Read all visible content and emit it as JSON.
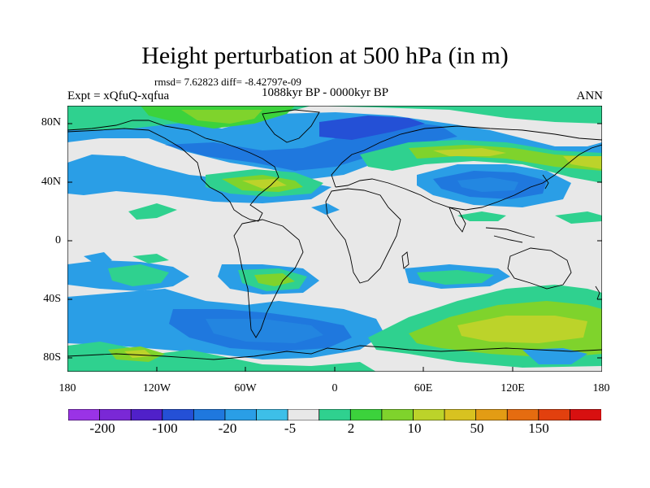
{
  "title": "Height perturbation at 500 hPa (in m)",
  "stats": "rmsd= 7.62823 diff= -8.42797e-09",
  "expt": "Expt = xQfuQ-xqfua",
  "period": "1088kyr BP - 0000kyr BP",
  "season": "ANN",
  "map": {
    "lat_labels": [
      "80N",
      "40N",
      "0",
      "40S",
      "80S"
    ],
    "lon_labels": [
      "180",
      "120W",
      "60W",
      "0",
      "60E",
      "120E",
      "180"
    ]
  },
  "colorbar": {
    "labels": [
      "-200",
      "-100",
      "-20",
      "-5",
      "2",
      "10",
      "50",
      "150"
    ],
    "colors": [
      "#9a33e6",
      "#7a28d6",
      "#5020c9",
      "#2450d6",
      "#1f78de",
      "#2a9ee6",
      "#3dbfe8",
      "#e8e8e8",
      "#2fd18f",
      "#3cd23c",
      "#7fd32c",
      "#bcd32a",
      "#d8c220",
      "#e39c14",
      "#e56c10",
      "#e2400e",
      "#d81010"
    ]
  }
}
